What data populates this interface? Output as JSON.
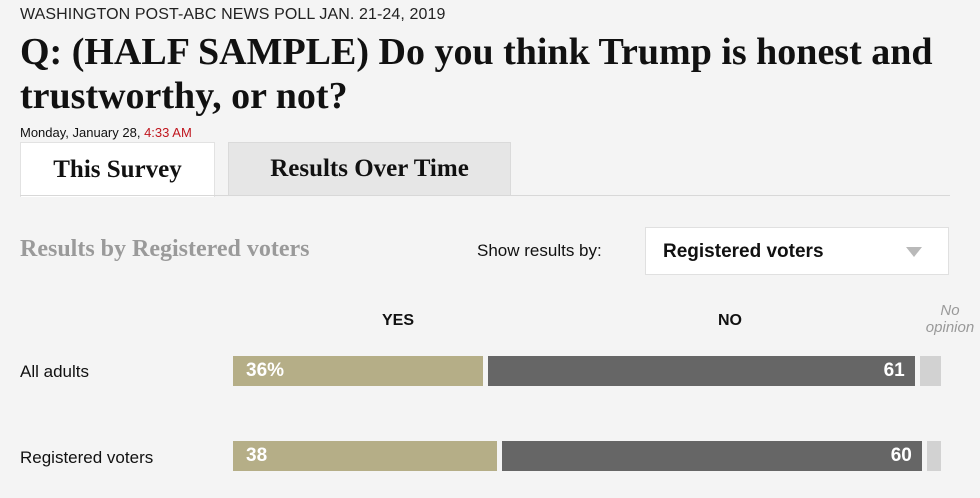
{
  "header": {
    "kicker": "WASHINGTON POST-ABC NEWS POLL JAN. 21-24, 2019",
    "question": "Q: (HALF SAMPLE) Do you think Trump is honest and trustworthy, or not?",
    "date": "Monday, January 28,",
    "time": "4:33 AM"
  },
  "tabs": [
    {
      "label": "This Survey",
      "active": true
    },
    {
      "label": "Results Over Time",
      "active": false
    }
  ],
  "controls": {
    "results_title": "Results by Registered voters",
    "show_label": "Show results by:",
    "selected": "Registered voters"
  },
  "colors": {
    "yes": "#b5ae87",
    "no": "#666666",
    "no_opinion": "#d2d2d2",
    "accent_time": "#c0161e"
  },
  "chart_data": {
    "type": "bar",
    "orientation": "horizontal-stacked",
    "title": "Q: (HALF SAMPLE) Do you think Trump is honest and trustworthy, or not?",
    "columns": [
      "YES",
      "NO",
      "No opinion"
    ],
    "categories": [
      "All adults",
      "Registered voters"
    ],
    "series": [
      {
        "name": "YES",
        "values": [
          36,
          38
        ],
        "labels": [
          "36%",
          "38"
        ]
      },
      {
        "name": "NO",
        "values": [
          61,
          60
        ],
        "labels": [
          "61",
          "60"
        ]
      },
      {
        "name": "No opinion",
        "values": [
          3,
          2
        ],
        "labels": [
          "",
          ""
        ]
      }
    ],
    "xlim": [
      0,
      100
    ]
  }
}
